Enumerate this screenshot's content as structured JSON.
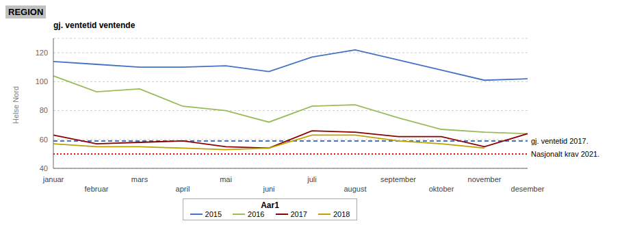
{
  "chart_data": {
    "type": "line",
    "title": "REGION",
    "subtitle": "gj. ventetid ventende",
    "y_label": "Helse Nord",
    "legend_title": "Aar1",
    "categories": [
      "januar",
      "februar",
      "mars",
      "april",
      "mai",
      "juni",
      "juli",
      "august",
      "september",
      "oktober",
      "november",
      "desember"
    ],
    "series": [
      {
        "name": "2015",
        "color": "#4472C4",
        "values": [
          114,
          112,
          110,
          110,
          111,
          107,
          117,
          122,
          115,
          108,
          101,
          102
        ]
      },
      {
        "name": "2016",
        "color": "#9BBB59",
        "values": [
          104,
          93,
          95,
          83,
          80,
          72,
          83,
          84,
          75,
          67,
          65,
          64
        ]
      },
      {
        "name": "2017",
        "color": "#8B0000",
        "values": [
          63,
          57,
          58,
          59,
          55,
          54,
          66,
          65,
          62,
          62,
          55,
          64
        ]
      },
      {
        "name": "2018",
        "color": "#C0A000",
        "values": [
          57,
          55,
          55,
          54,
          53,
          54,
          63,
          63,
          59,
          57,
          54,
          null
        ]
      }
    ],
    "annotations": [
      {
        "label": "gj. ventetid 2017.",
        "value": 59,
        "color": "#4472C4",
        "line_style": "dashed"
      },
      {
        "label": "Nasjonalt krav 2021.",
        "value": 50,
        "color": "#FF0000",
        "line_style": "dotted"
      }
    ],
    "ylim": [
      40,
      130
    ],
    "yticks": [
      40,
      60,
      80,
      100,
      120
    ],
    "grid": true,
    "legend": "bottom"
  }
}
